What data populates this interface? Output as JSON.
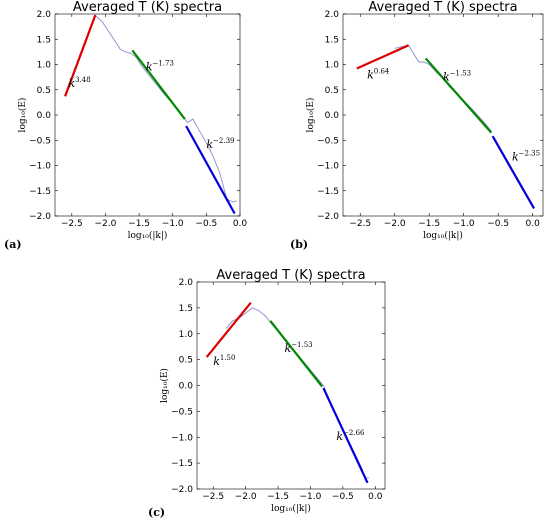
{
  "chart_data": [
    {
      "type": "line",
      "panel_label": "(a)",
      "title": "Averaged T (K) spectra",
      "xlabel": "log10(|k|)",
      "ylabel": "log10(E)",
      "xlim": [
        -2.75,
        0.0
      ],
      "ylim": [
        -2.0,
        2.0
      ],
      "xticks": [
        "-2.5",
        "-2.0",
        "-1.5",
        "-1.0",
        "-0.5",
        "0.0"
      ],
      "yticks": [
        "-2.0",
        "-1.5",
        "-1.0",
        "-0.5",
        "0.0",
        "0.5",
        "1.0",
        "1.5",
        "2.0"
      ],
      "spectrum": {
        "color": "#8c8ccc",
        "x": [
          -2.15,
          -2.05,
          -1.95,
          -1.85,
          -1.78,
          -1.7,
          -1.62,
          -1.55,
          -1.45,
          -1.35,
          -1.25,
          -1.15,
          -1.05,
          -0.95,
          -0.85,
          -0.78,
          -0.7,
          -0.6,
          -0.5,
          -0.4,
          -0.3,
          -0.25,
          -0.2,
          -0.15,
          -0.1,
          -0.05
        ],
        "y": [
          1.97,
          1.85,
          1.65,
          1.45,
          1.3,
          1.25,
          1.22,
          1.15,
          0.95,
          0.78,
          0.62,
          0.45,
          0.3,
          0.15,
          -0.02,
          -0.15,
          -0.08,
          -0.32,
          -0.55,
          -0.82,
          -1.15,
          -1.4,
          -1.65,
          -1.7,
          -1.72,
          -1.7
        ]
      },
      "fits": [
        {
          "color": "#dd0000",
          "x": [
            -2.6,
            -2.15
          ],
          "y": [
            0.37,
            1.98
          ],
          "label": "k",
          "exponent": "3.48",
          "label_at": [
            -2.55,
            0.55
          ]
        },
        {
          "color": "#008800",
          "x": [
            -1.6,
            -0.82
          ],
          "y": [
            1.28,
            -0.08
          ],
          "label": "k",
          "exponent": "−1.73",
          "label_at": [
            -1.4,
            0.88
          ]
        },
        {
          "color": "#0000dd",
          "x": [
            -0.8,
            -0.08
          ],
          "y": [
            -0.22,
            -1.95
          ],
          "label": "k",
          "exponent": "−2.39",
          "label_at": [
            -0.5,
            -0.65
          ]
        }
      ]
    },
    {
      "type": "line",
      "panel_label": "(b)",
      "title": "Averaged T (K) spectra",
      "xlabel": "log10(|k|)",
      "ylabel": "log10(E)",
      "xlim": [
        -2.75,
        0.15
      ],
      "ylim": [
        -2.0,
        2.0
      ],
      "xticks": [
        "-2.5",
        "-2.0",
        "-1.5",
        "-1.0",
        "-0.5",
        "0.0"
      ],
      "yticks": [
        "-2.0",
        "-1.5",
        "-1.0",
        "-0.5",
        "0.0",
        "0.5",
        "1.0",
        "1.5",
        "2.0"
      ],
      "spectrum": {
        "color": "#8c8ccc",
        "x": [
          -2.0,
          -1.9,
          -1.8,
          -1.72,
          -1.65,
          -1.58,
          -1.5,
          -1.4,
          -1.3,
          -1.2,
          -1.1,
          -1.0,
          -0.9,
          -0.8,
          -0.7,
          -0.6
        ],
        "y": [
          1.32,
          1.35,
          1.38,
          1.2,
          1.05,
          1.05,
          1.0,
          0.85,
          0.72,
          0.55,
          0.42,
          0.28,
          0.15,
          0.0,
          -0.15,
          -0.32
        ]
      },
      "fits": [
        {
          "color": "#dd0000",
          "x": [
            -2.55,
            -1.8
          ],
          "y": [
            0.92,
            1.38
          ],
          "label": "k",
          "exponent": "0.64",
          "label_at": [
            -2.4,
            0.72
          ]
        },
        {
          "color": "#008800",
          "x": [
            -1.55,
            -0.6
          ],
          "y": [
            1.12,
            -0.35
          ],
          "label": "k",
          "exponent": "−1.53",
          "label_at": [
            -1.3,
            0.68
          ]
        },
        {
          "color": "#0000dd",
          "x": [
            -0.58,
            0.02
          ],
          "y": [
            -0.42,
            -1.85
          ],
          "label": "k",
          "exponent": "−2.35",
          "label_at": [
            -0.3,
            -0.9
          ]
        }
      ]
    },
    {
      "type": "line",
      "panel_label": "(c)",
      "title": "Averaged T (K) spectra",
      "xlabel": "log10(|k|)",
      "ylabel": "log10(E)",
      "xlim": [
        -2.75,
        0.15
      ],
      "ylim": [
        -2.0,
        2.0
      ],
      "xticks": [
        "-2.5",
        "-2.0",
        "-1.5",
        "-1.0",
        "-0.5",
        "0.0"
      ],
      "yticks": [
        "-2.0",
        "-1.5",
        "-1.0",
        "-0.5",
        "0.0",
        "0.5",
        "1.0",
        "1.5",
        "2.0"
      ],
      "spectrum": {
        "color": "#8c8ccc",
        "x": [
          -2.3,
          -2.2,
          -2.1,
          -2.0,
          -1.9,
          -1.8,
          -1.7,
          -1.62,
          -1.5,
          -1.4,
          -1.3,
          -1.2,
          -1.1,
          -1.0,
          -0.9,
          -0.8,
          -0.7,
          -0.6,
          -0.5,
          -0.4,
          -0.3,
          -0.2,
          -0.15,
          -0.1
        ],
        "y": [
          1.1,
          1.25,
          1.3,
          1.4,
          1.5,
          1.45,
          1.35,
          1.22,
          1.05,
          0.9,
          0.75,
          0.6,
          0.45,
          0.3,
          0.15,
          0.0,
          -0.3,
          -0.6,
          -0.85,
          -1.1,
          -1.35,
          -1.62,
          -1.8,
          -1.78
        ]
      },
      "fits": [
        {
          "color": "#dd0000",
          "x": [
            -2.6,
            -1.92
          ],
          "y": [
            0.55,
            1.6
          ],
          "label": "k",
          "exponent": "1.50",
          "label_at": [
            -2.5,
            0.4
          ]
        },
        {
          "color": "#008800",
          "x": [
            -1.62,
            -0.82
          ],
          "y": [
            1.25,
            -0.02
          ],
          "label": "k",
          "exponent": "−1.53",
          "label_at": [
            -1.4,
            0.65
          ]
        },
        {
          "color": "#0000dd",
          "x": [
            -0.8,
            -0.12
          ],
          "y": [
            -0.05,
            -1.88
          ],
          "label": "k",
          "exponent": "−2.66",
          "label_at": [
            -0.6,
            -1.05
          ]
        }
      ]
    }
  ]
}
